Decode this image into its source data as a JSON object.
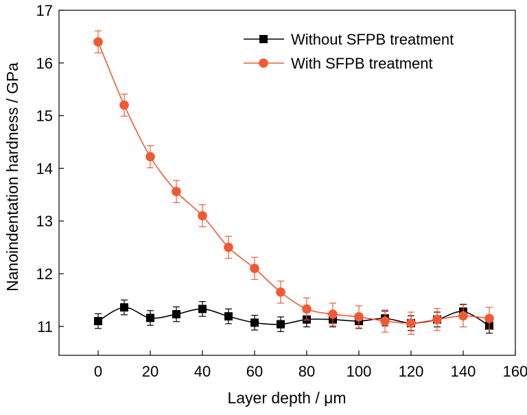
{
  "chart_data": {
    "type": "line",
    "xlabel": "Layer depth / μm",
    "ylabel": "Nanoindentation hardness / GPa",
    "xlim": [
      -15,
      160
    ],
    "ylim": [
      10.45,
      17
    ],
    "xticks": [
      0,
      20,
      40,
      60,
      80,
      100,
      120,
      140,
      160
    ],
    "yticks": [
      11,
      12,
      13,
      14,
      15,
      16,
      17
    ],
    "grid": false,
    "legend_position": "top-right",
    "x": [
      0,
      10,
      20,
      30,
      40,
      50,
      60,
      70,
      80,
      90,
      100,
      110,
      120,
      130,
      140,
      150
    ],
    "series": [
      {
        "name": "Without SFPB treatment",
        "color": "#000000",
        "marker": "square",
        "values": [
          11.1,
          11.36,
          11.16,
          11.23,
          11.33,
          11.19,
          11.07,
          11.04,
          11.13,
          11.13,
          11.1,
          11.15,
          11.06,
          11.13,
          11.28,
          11.01
        ],
        "errors": [
          0.14,
          0.14,
          0.14,
          0.14,
          0.14,
          0.14,
          0.14,
          0.14,
          0.14,
          0.14,
          0.14,
          0.14,
          0.14,
          0.14,
          0.14,
          0.14
        ]
      },
      {
        "name": "With SFPB treatment",
        "color": "#ef5a35",
        "marker": "circle",
        "values": [
          16.4,
          15.2,
          14.22,
          13.56,
          13.1,
          12.5,
          12.1,
          11.65,
          11.33,
          11.23,
          11.18,
          11.1,
          11.06,
          11.13,
          11.2,
          11.15
        ],
        "errors": [
          0.21,
          0.21,
          0.21,
          0.21,
          0.21,
          0.21,
          0.21,
          0.21,
          0.21,
          0.21,
          0.21,
          0.21,
          0.21,
          0.21,
          0.21,
          0.21
        ]
      }
    ]
  }
}
